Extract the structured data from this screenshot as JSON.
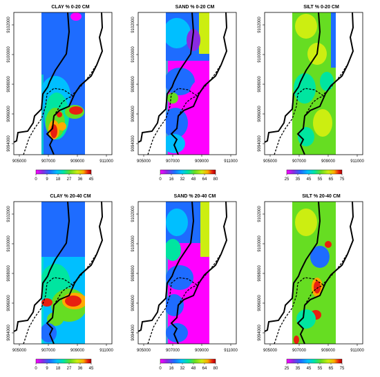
{
  "figure": {
    "x_ticks": [
      "905000",
      "907000",
      "909000",
      "911000"
    ],
    "y_ticks": [
      "9094000",
      "9096000",
      "9098000",
      "9100000",
      "9102000"
    ],
    "panels": [
      {
        "id": "clay-0-20",
        "title": "CLAY % 0-20 CM",
        "variable": "clay",
        "depth": "0-20 cm",
        "legend": [
          "0",
          "9",
          "18",
          "27",
          "36",
          "45"
        ]
      },
      {
        "id": "sand-0-20",
        "title": "SAND % 0-20 CM",
        "variable": "sand",
        "depth": "0-20 cm",
        "legend": [
          "0",
          "16",
          "32",
          "48",
          "64",
          "80"
        ]
      },
      {
        "id": "silt-0-20",
        "title": "SILT % 0-20 CM",
        "variable": "silt",
        "depth": "0-20 cm",
        "legend": [
          "25",
          "35",
          "45",
          "55",
          "65",
          "75"
        ]
      },
      {
        "id": "clay-20-40",
        "title": "CLAY % 20-40 CM",
        "variable": "clay",
        "depth": "20-40 cm",
        "legend": [
          "0",
          "9",
          "18",
          "27",
          "36",
          "45"
        ]
      },
      {
        "id": "sand-20-40",
        "title": "SAND % 20-40 CM",
        "variable": "sand",
        "depth": "20-40 cm",
        "legend": [
          "0",
          "16",
          "32",
          "48",
          "64",
          "80"
        ]
      },
      {
        "id": "silt-20-40",
        "title": "SILT % 20-40 CM",
        "variable": "silt",
        "depth": "20-40 cm",
        "legend": [
          "25",
          "35",
          "45",
          "55",
          "65",
          "75"
        ]
      }
    ],
    "palette": [
      "#ff00ff",
      "#8a2be2",
      "#1e6cff",
      "#00bfff",
      "#00e5a0",
      "#66dd22",
      "#ccee11",
      "#ffaa00",
      "#e82010",
      "#b00000"
    ]
  }
}
